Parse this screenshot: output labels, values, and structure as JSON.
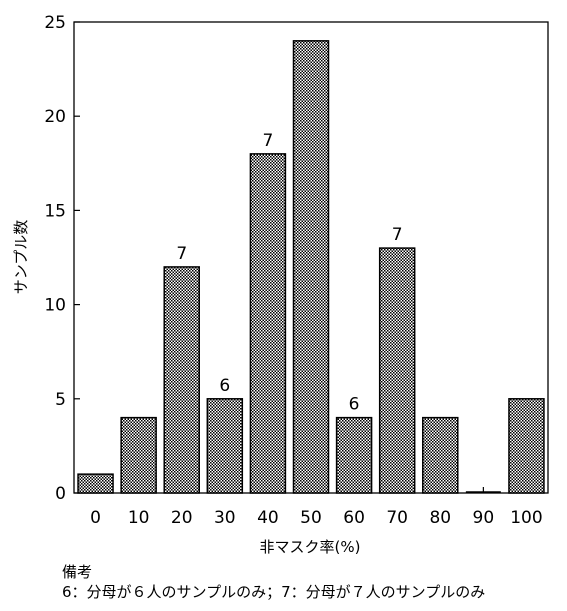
{
  "chart_data": {
    "type": "bar",
    "title": "",
    "xlabel": "非マスク率(%)",
    "ylabel": "サンプル数",
    "ylim": [
      0,
      25
    ],
    "yticks": [
      0,
      5,
      10,
      15,
      20,
      25
    ],
    "categories": [
      "0",
      "10",
      "20",
      "30",
      "40",
      "50",
      "60",
      "70",
      "80",
      "90",
      "100"
    ],
    "values": [
      1,
      4,
      12,
      5,
      18,
      24,
      4,
      13,
      4,
      0,
      5
    ],
    "bar_annotations": [
      "",
      "",
      "7",
      "6",
      "7",
      "",
      "6",
      "7",
      "",
      "",
      ""
    ],
    "grid": false,
    "bar_fill": "crosshatch",
    "bar_color": "#000000"
  },
  "notes": {
    "title": "備考",
    "text": "6：分母が６人のサンプルのみ；7：分母が７人のサンプルのみ"
  }
}
